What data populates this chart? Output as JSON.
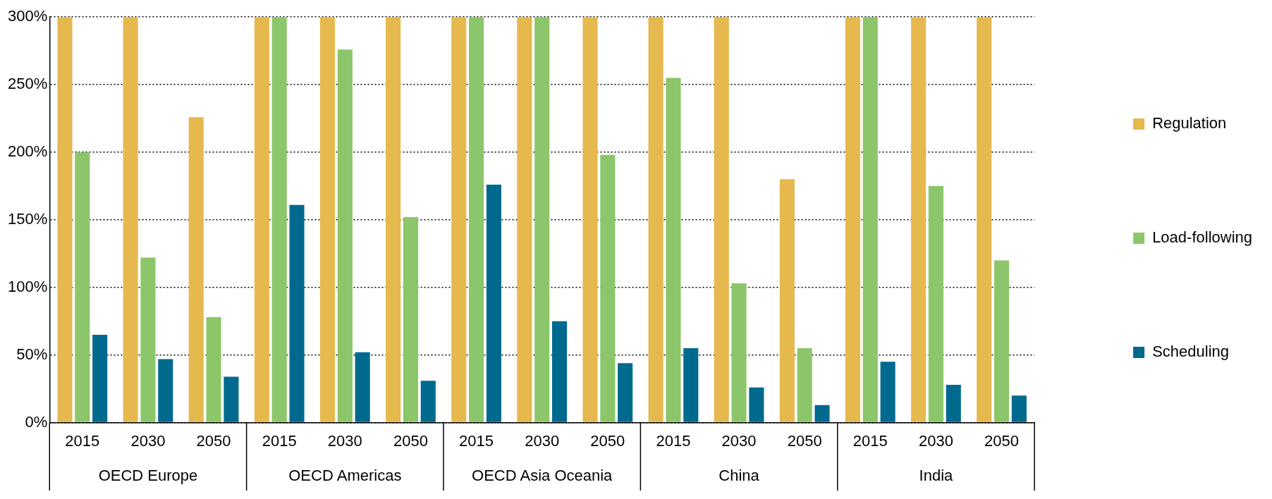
{
  "chart_data": {
    "type": "bar",
    "categories": [
      "2015",
      "2030",
      "2050",
      "2015",
      "2030",
      "2050",
      "2015",
      "2030",
      "2050",
      "2015",
      "2030",
      "2050",
      "2015",
      "2030",
      "2050"
    ],
    "annotations": [
      "OECD Europe",
      "OECD Americas",
      "OECD Asia Oceania",
      "China",
      "India"
    ],
    "series": [
      {
        "name": "Regulation",
        "color": "#e6b94f",
        "values": [
          300,
          300,
          226,
          300,
          300,
          300,
          300,
          300,
          300,
          300,
          300,
          180,
          300,
          300,
          300
        ]
      },
      {
        "name": "Load-following",
        "color": "#8cc66a",
        "values": [
          200,
          122,
          78,
          300,
          276,
          152,
          300,
          300,
          198,
          255,
          103,
          55,
          300,
          175,
          120
        ]
      },
      {
        "name": "Scheduling",
        "color": "#006a8e",
        "values": [
          65,
          47,
          34,
          161,
          52,
          31,
          176,
          75,
          44,
          55,
          26,
          13,
          45,
          28,
          20
        ]
      }
    ],
    "ylim": [
      0,
      300
    ],
    "yticks": [
      {
        "value": 0,
        "label": "0%"
      },
      {
        "value": 50,
        "label": "50%"
      },
      {
        "value": 100,
        "label": "100%"
      },
      {
        "value": 150,
        "label": "150%"
      },
      {
        "value": 200,
        "label": "200%"
      },
      {
        "value": 250,
        "label": "250%"
      },
      {
        "value": 300,
        "label": "300%"
      }
    ],
    "grid": "y",
    "legend": "right"
  }
}
